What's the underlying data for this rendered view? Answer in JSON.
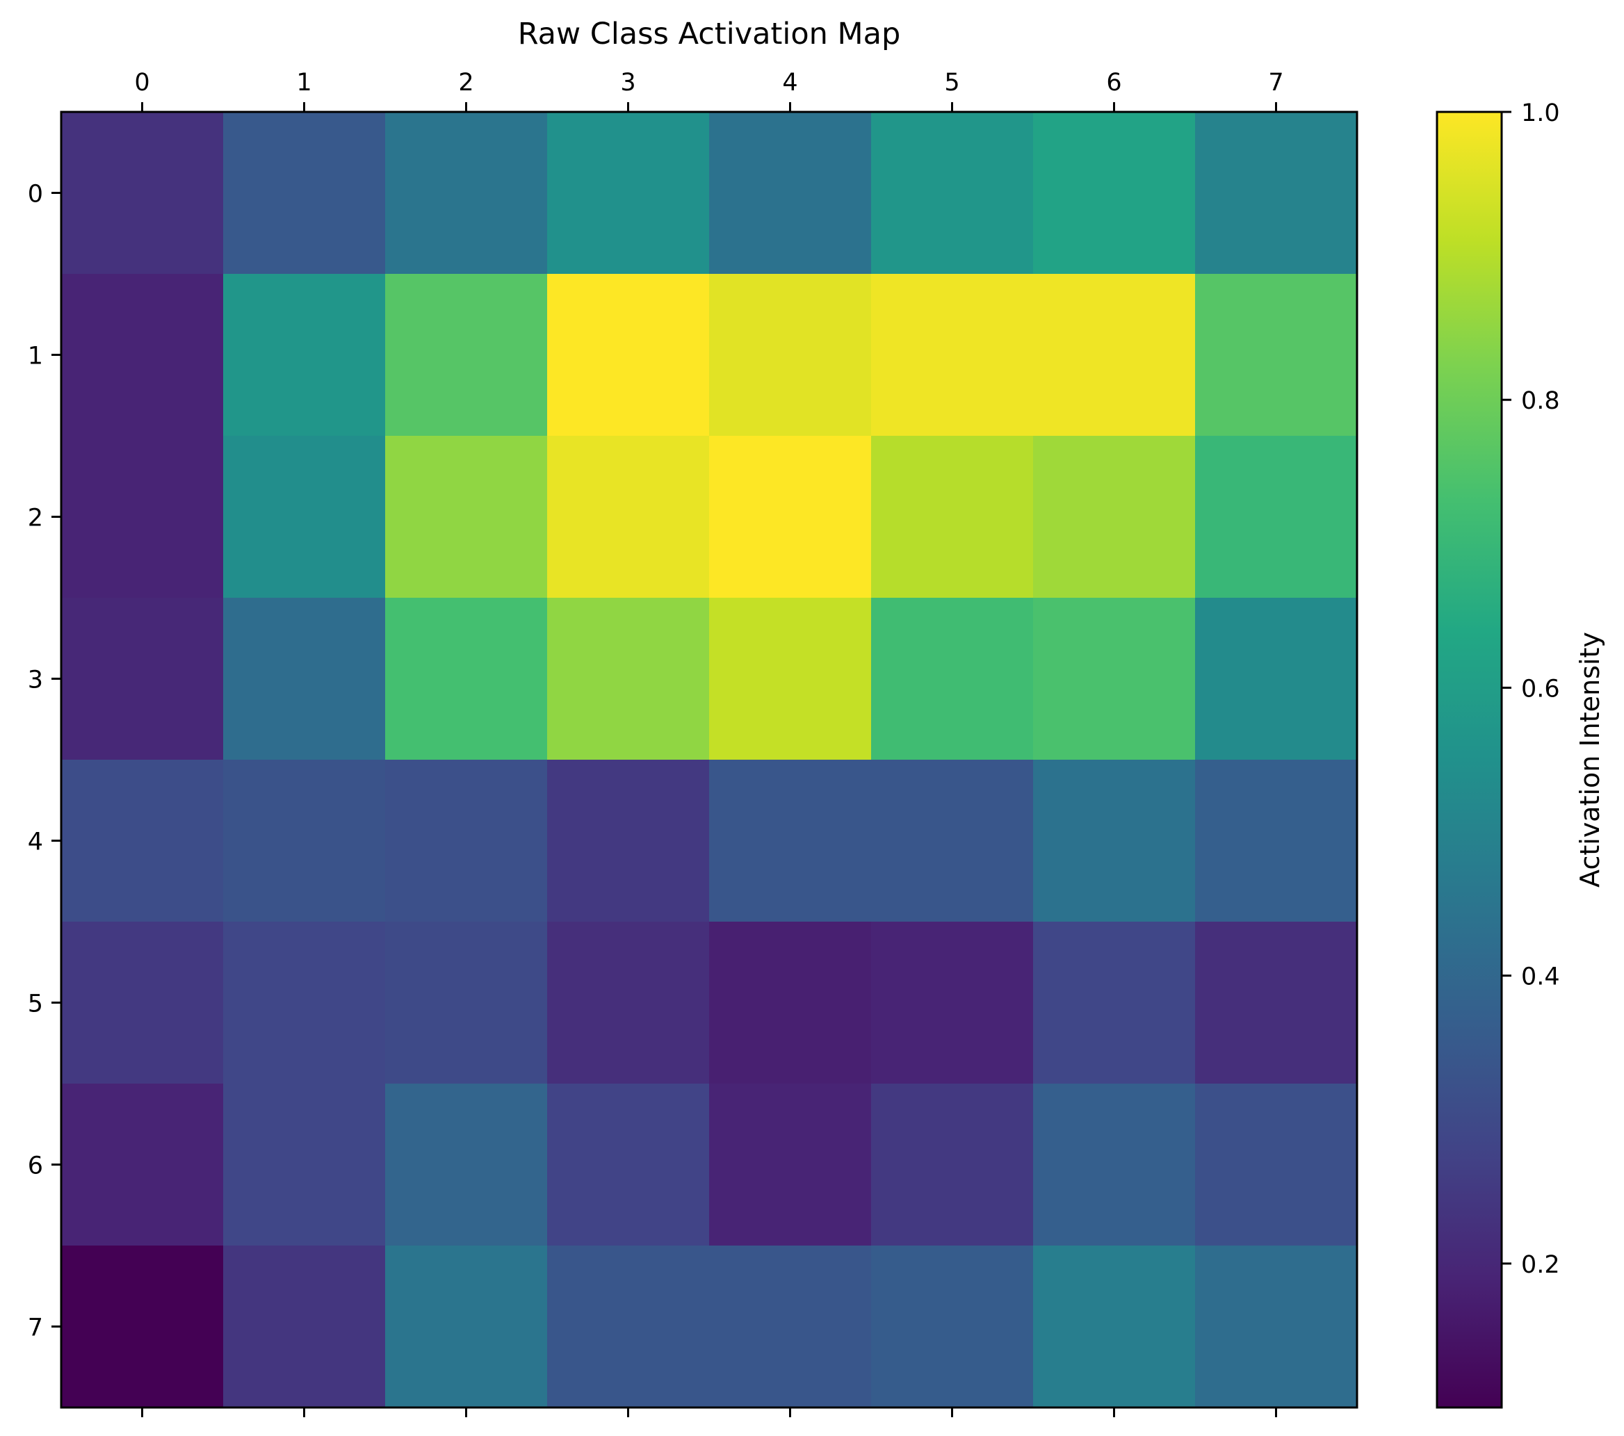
{
  "chart_data": {
    "type": "heatmap",
    "title": "Raw Class Activation Map",
    "xlabel": "",
    "ylabel": "",
    "x_categories": [
      "0",
      "1",
      "2",
      "3",
      "4",
      "5",
      "6",
      "7"
    ],
    "y_categories": [
      "0",
      "1",
      "2",
      "3",
      "4",
      "5",
      "6",
      "7"
    ],
    "x_ticks_position": "top",
    "values": [
      [
        0.23,
        0.35,
        0.45,
        0.55,
        0.44,
        0.57,
        0.62,
        0.5
      ],
      [
        0.19,
        0.57,
        0.76,
        1.0,
        0.96,
        0.98,
        0.98,
        0.76
      ],
      [
        0.19,
        0.54,
        0.85,
        0.97,
        1.0,
        0.9,
        0.87,
        0.7
      ],
      [
        0.2,
        0.42,
        0.73,
        0.85,
        0.92,
        0.72,
        0.74,
        0.53
      ],
      [
        0.31,
        0.33,
        0.32,
        0.25,
        0.34,
        0.34,
        0.44,
        0.37
      ],
      [
        0.25,
        0.29,
        0.3,
        0.22,
        0.18,
        0.19,
        0.29,
        0.22
      ],
      [
        0.19,
        0.29,
        0.39,
        0.28,
        0.19,
        0.25,
        0.37,
        0.32
      ],
      [
        0.1,
        0.24,
        0.45,
        0.34,
        0.34,
        0.36,
        0.48,
        0.42
      ]
    ],
    "colormap": "viridis",
    "colorbar": {
      "label": "Activation Intensity",
      "min": 0.1,
      "max": 1.0,
      "ticks": [
        0.2,
        0.4,
        0.6,
        0.8,
        1.0
      ],
      "tick_labels": [
        "0.2",
        "0.4",
        "0.6",
        "0.8",
        "1.0"
      ]
    },
    "grid": false
  }
}
